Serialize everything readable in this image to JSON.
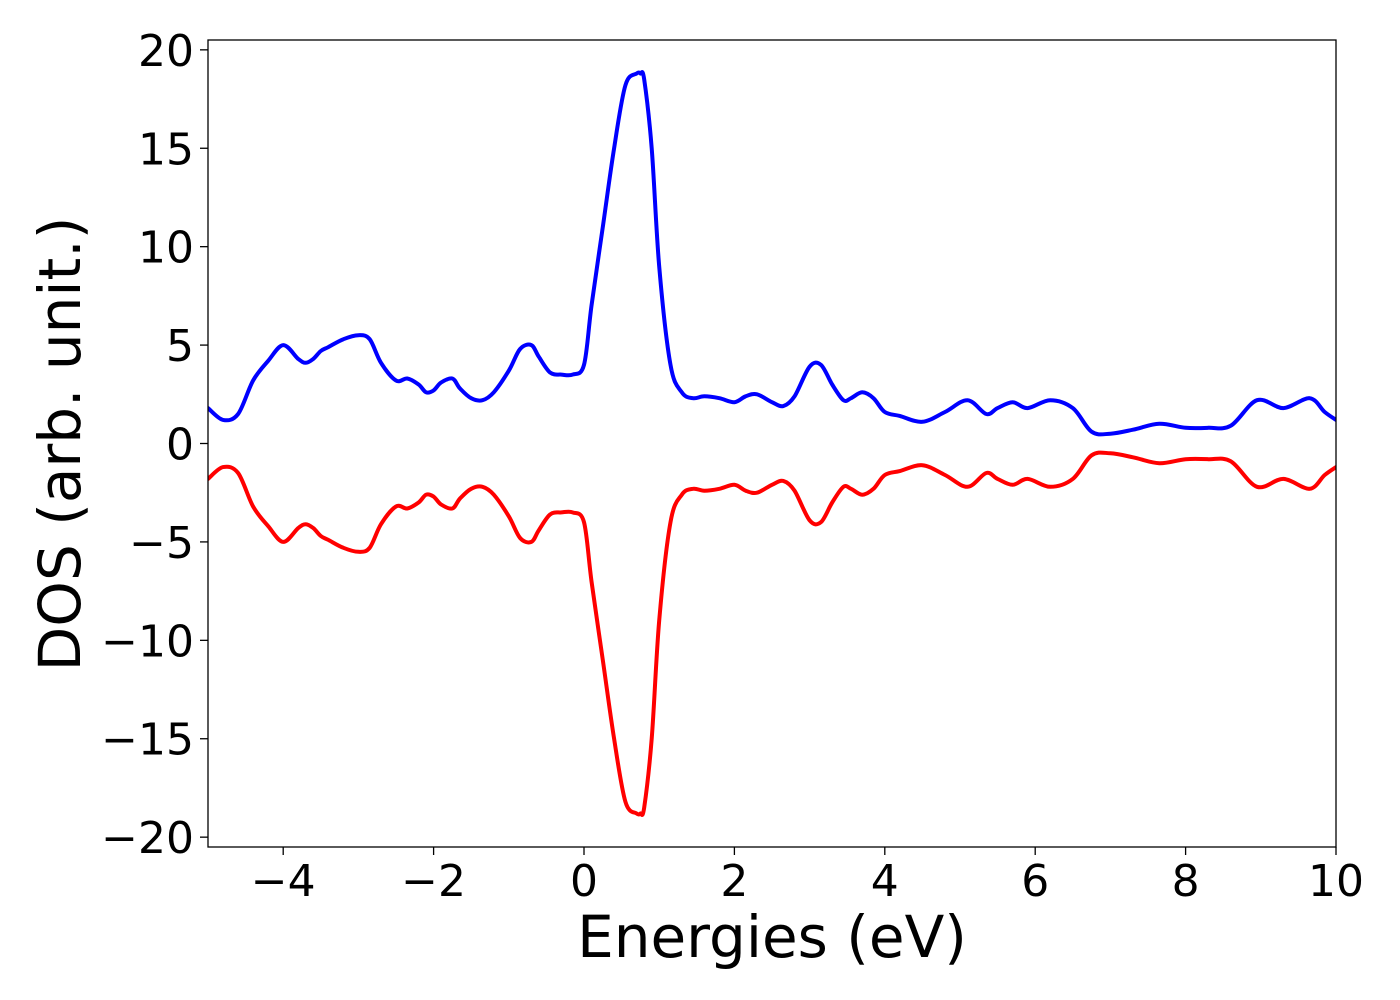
{
  "chart_data": {
    "type": "line",
    "title": "",
    "xlabel": "Energies (eV)",
    "ylabel": "DOS (arb. unit.)",
    "xlim": [
      -5,
      10
    ],
    "ylim": [
      -20.5,
      20.5
    ],
    "grid": false,
    "x_ticks": [
      -4,
      -2,
      0,
      2,
      4,
      6,
      8,
      10
    ],
    "x_tick_labels": [
      "−4",
      "−2",
      "0",
      "2",
      "4",
      "6",
      "8",
      "10"
    ],
    "y_ticks": [
      -20,
      -15,
      -10,
      -5,
      0,
      5,
      10,
      15,
      20
    ],
    "y_tick_labels": [
      "−20",
      "−15",
      "−10",
      "−5",
      "0",
      "5",
      "10",
      "15",
      "20"
    ],
    "series": [
      {
        "color": "#0000ff",
        "x": [
          -5.0,
          -4.8,
          -4.6,
          -4.4,
          -4.2,
          -4.0,
          -3.8,
          -3.7,
          -3.6,
          -3.5,
          -3.4,
          -3.2,
          -3.0,
          -2.85,
          -2.7,
          -2.5,
          -2.35,
          -2.2,
          -2.1,
          -2.0,
          -1.9,
          -1.75,
          -1.65,
          -1.5,
          -1.35,
          -1.2,
          -1.0,
          -0.85,
          -0.7,
          -0.6,
          -0.45,
          -0.3,
          -0.15,
          0.0,
          0.1,
          0.25,
          0.4,
          0.55,
          0.7,
          0.75,
          0.8,
          0.9,
          1.0,
          1.15,
          1.3,
          1.45,
          1.6,
          1.8,
          2.0,
          2.15,
          2.3,
          2.5,
          2.65,
          2.8,
          3.0,
          3.15,
          3.3,
          3.45,
          3.55,
          3.7,
          3.85,
          4.0,
          4.2,
          4.5,
          4.8,
          5.1,
          5.35,
          5.5,
          5.7,
          5.9,
          6.2,
          6.5,
          6.75,
          7.0,
          7.3,
          7.65,
          8.0,
          8.3,
          8.6,
          8.95,
          9.3,
          9.65,
          9.85,
          10.0
        ],
        "values": [
          1.8,
          1.2,
          1.5,
          3.2,
          4.2,
          5.0,
          4.3,
          4.1,
          4.3,
          4.7,
          4.9,
          5.3,
          5.5,
          5.3,
          4.1,
          3.2,
          3.3,
          3.0,
          2.6,
          2.7,
          3.1,
          3.3,
          2.8,
          2.3,
          2.2,
          2.6,
          3.7,
          4.8,
          5.0,
          4.4,
          3.6,
          3.5,
          3.5,
          4.0,
          7.0,
          11.0,
          15.0,
          18.2,
          18.8,
          18.8,
          18.5,
          15.0,
          9.0,
          4.0,
          2.6,
          2.3,
          2.4,
          2.3,
          2.1,
          2.4,
          2.5,
          2.1,
          1.9,
          2.4,
          3.9,
          4.0,
          3.0,
          2.2,
          2.3,
          2.6,
          2.3,
          1.6,
          1.4,
          1.1,
          1.6,
          2.2,
          1.5,
          1.8,
          2.1,
          1.8,
          2.2,
          1.8,
          0.6,
          0.5,
          0.7,
          1.0,
          0.8,
          0.8,
          0.9,
          2.2,
          1.8,
          2.3,
          1.6,
          1.2
        ]
      },
      {
        "color": "#ff0000",
        "x": [
          -5.0,
          -4.8,
          -4.6,
          -4.4,
          -4.2,
          -4.0,
          -3.8,
          -3.7,
          -3.6,
          -3.5,
          -3.4,
          -3.2,
          -3.0,
          -2.85,
          -2.7,
          -2.5,
          -2.35,
          -2.2,
          -2.1,
          -2.0,
          -1.9,
          -1.75,
          -1.65,
          -1.5,
          -1.35,
          -1.2,
          -1.0,
          -0.85,
          -0.7,
          -0.6,
          -0.45,
          -0.3,
          -0.15,
          0.0,
          0.1,
          0.25,
          0.4,
          0.55,
          0.7,
          0.75,
          0.8,
          0.9,
          1.0,
          1.15,
          1.3,
          1.45,
          1.6,
          1.8,
          2.0,
          2.15,
          2.3,
          2.5,
          2.65,
          2.8,
          3.0,
          3.15,
          3.3,
          3.45,
          3.55,
          3.7,
          3.85,
          4.0,
          4.2,
          4.5,
          4.8,
          5.1,
          5.35,
          5.5,
          5.7,
          5.9,
          6.2,
          6.5,
          6.75,
          7.0,
          7.3,
          7.65,
          8.0,
          8.3,
          8.6,
          8.95,
          9.3,
          9.65,
          9.85,
          10.0
        ],
        "values": [
          -1.8,
          -1.2,
          -1.5,
          -3.2,
          -4.2,
          -5.0,
          -4.3,
          -4.1,
          -4.3,
          -4.7,
          -4.9,
          -5.3,
          -5.5,
          -5.3,
          -4.1,
          -3.2,
          -3.3,
          -3.0,
          -2.6,
          -2.7,
          -3.1,
          -3.3,
          -2.8,
          -2.3,
          -2.2,
          -2.6,
          -3.7,
          -4.8,
          -5.0,
          -4.4,
          -3.6,
          -3.5,
          -3.5,
          -4.0,
          -7.0,
          -11.0,
          -15.0,
          -18.2,
          -18.8,
          -18.8,
          -18.5,
          -15.0,
          -9.0,
          -4.0,
          -2.6,
          -2.3,
          -2.4,
          -2.3,
          -2.1,
          -2.4,
          -2.5,
          -2.1,
          -1.9,
          -2.4,
          -3.9,
          -4.0,
          -3.0,
          -2.2,
          -2.3,
          -2.6,
          -2.3,
          -1.6,
          -1.4,
          -1.1,
          -1.6,
          -2.2,
          -1.5,
          -1.8,
          -2.1,
          -1.8,
          -2.2,
          -1.8,
          -0.6,
          -0.5,
          -0.7,
          -1.0,
          -0.8,
          -0.8,
          -0.9,
          -2.2,
          -1.8,
          -2.3,
          -1.6,
          -1.2
        ]
      }
    ]
  }
}
